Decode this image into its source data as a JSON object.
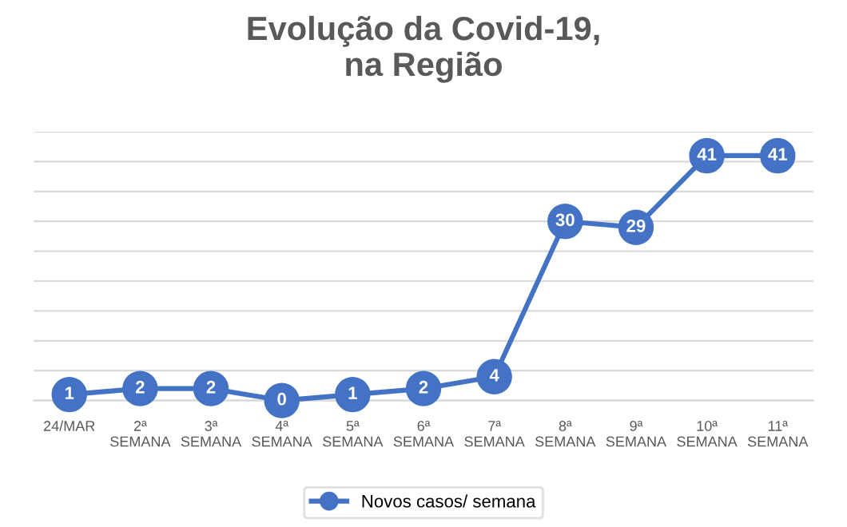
{
  "chart_data": {
    "type": "line",
    "title": "Evolução da Covid-19,\nna Região",
    "categories": [
      "24/MAR",
      "2ª\nSEMANA",
      "3ª\nSEMANA",
      "4ª\nSEMANA",
      "5ª\nSEMANA",
      "6ª\nSEMANA",
      "7ª\nSEMANA",
      "8ª\nSEMANA",
      "9ª\nSEMANA",
      "10ª\nSEMANA",
      "11ª\nSEMANA"
    ],
    "series": [
      {
        "name": "Novos casos/ semana",
        "color": "#4472c4",
        "values": [
          1,
          2,
          2,
          0,
          1,
          2,
          4,
          30,
          29,
          41,
          41
        ]
      }
    ],
    "ylim": [
      0,
      45
    ],
    "yticks": [
      {
        "value": 0,
        "label": null
      },
      {
        "value": 5,
        "label": null
      },
      {
        "value": 10,
        "label": null
      },
      {
        "value": 15,
        "label": null
      },
      {
        "value": 20,
        "label": null
      },
      {
        "value": 25,
        "label": null
      },
      {
        "value": 30,
        "label": null
      },
      {
        "value": 35,
        "label": null
      },
      {
        "value": 40,
        "label": null
      },
      {
        "value": 45,
        "label": null
      }
    ],
    "tick_labels": "x",
    "grid": "y",
    "legend": "bottom",
    "marker": "circle",
    "line_style": "solid",
    "data_labels": true
  }
}
